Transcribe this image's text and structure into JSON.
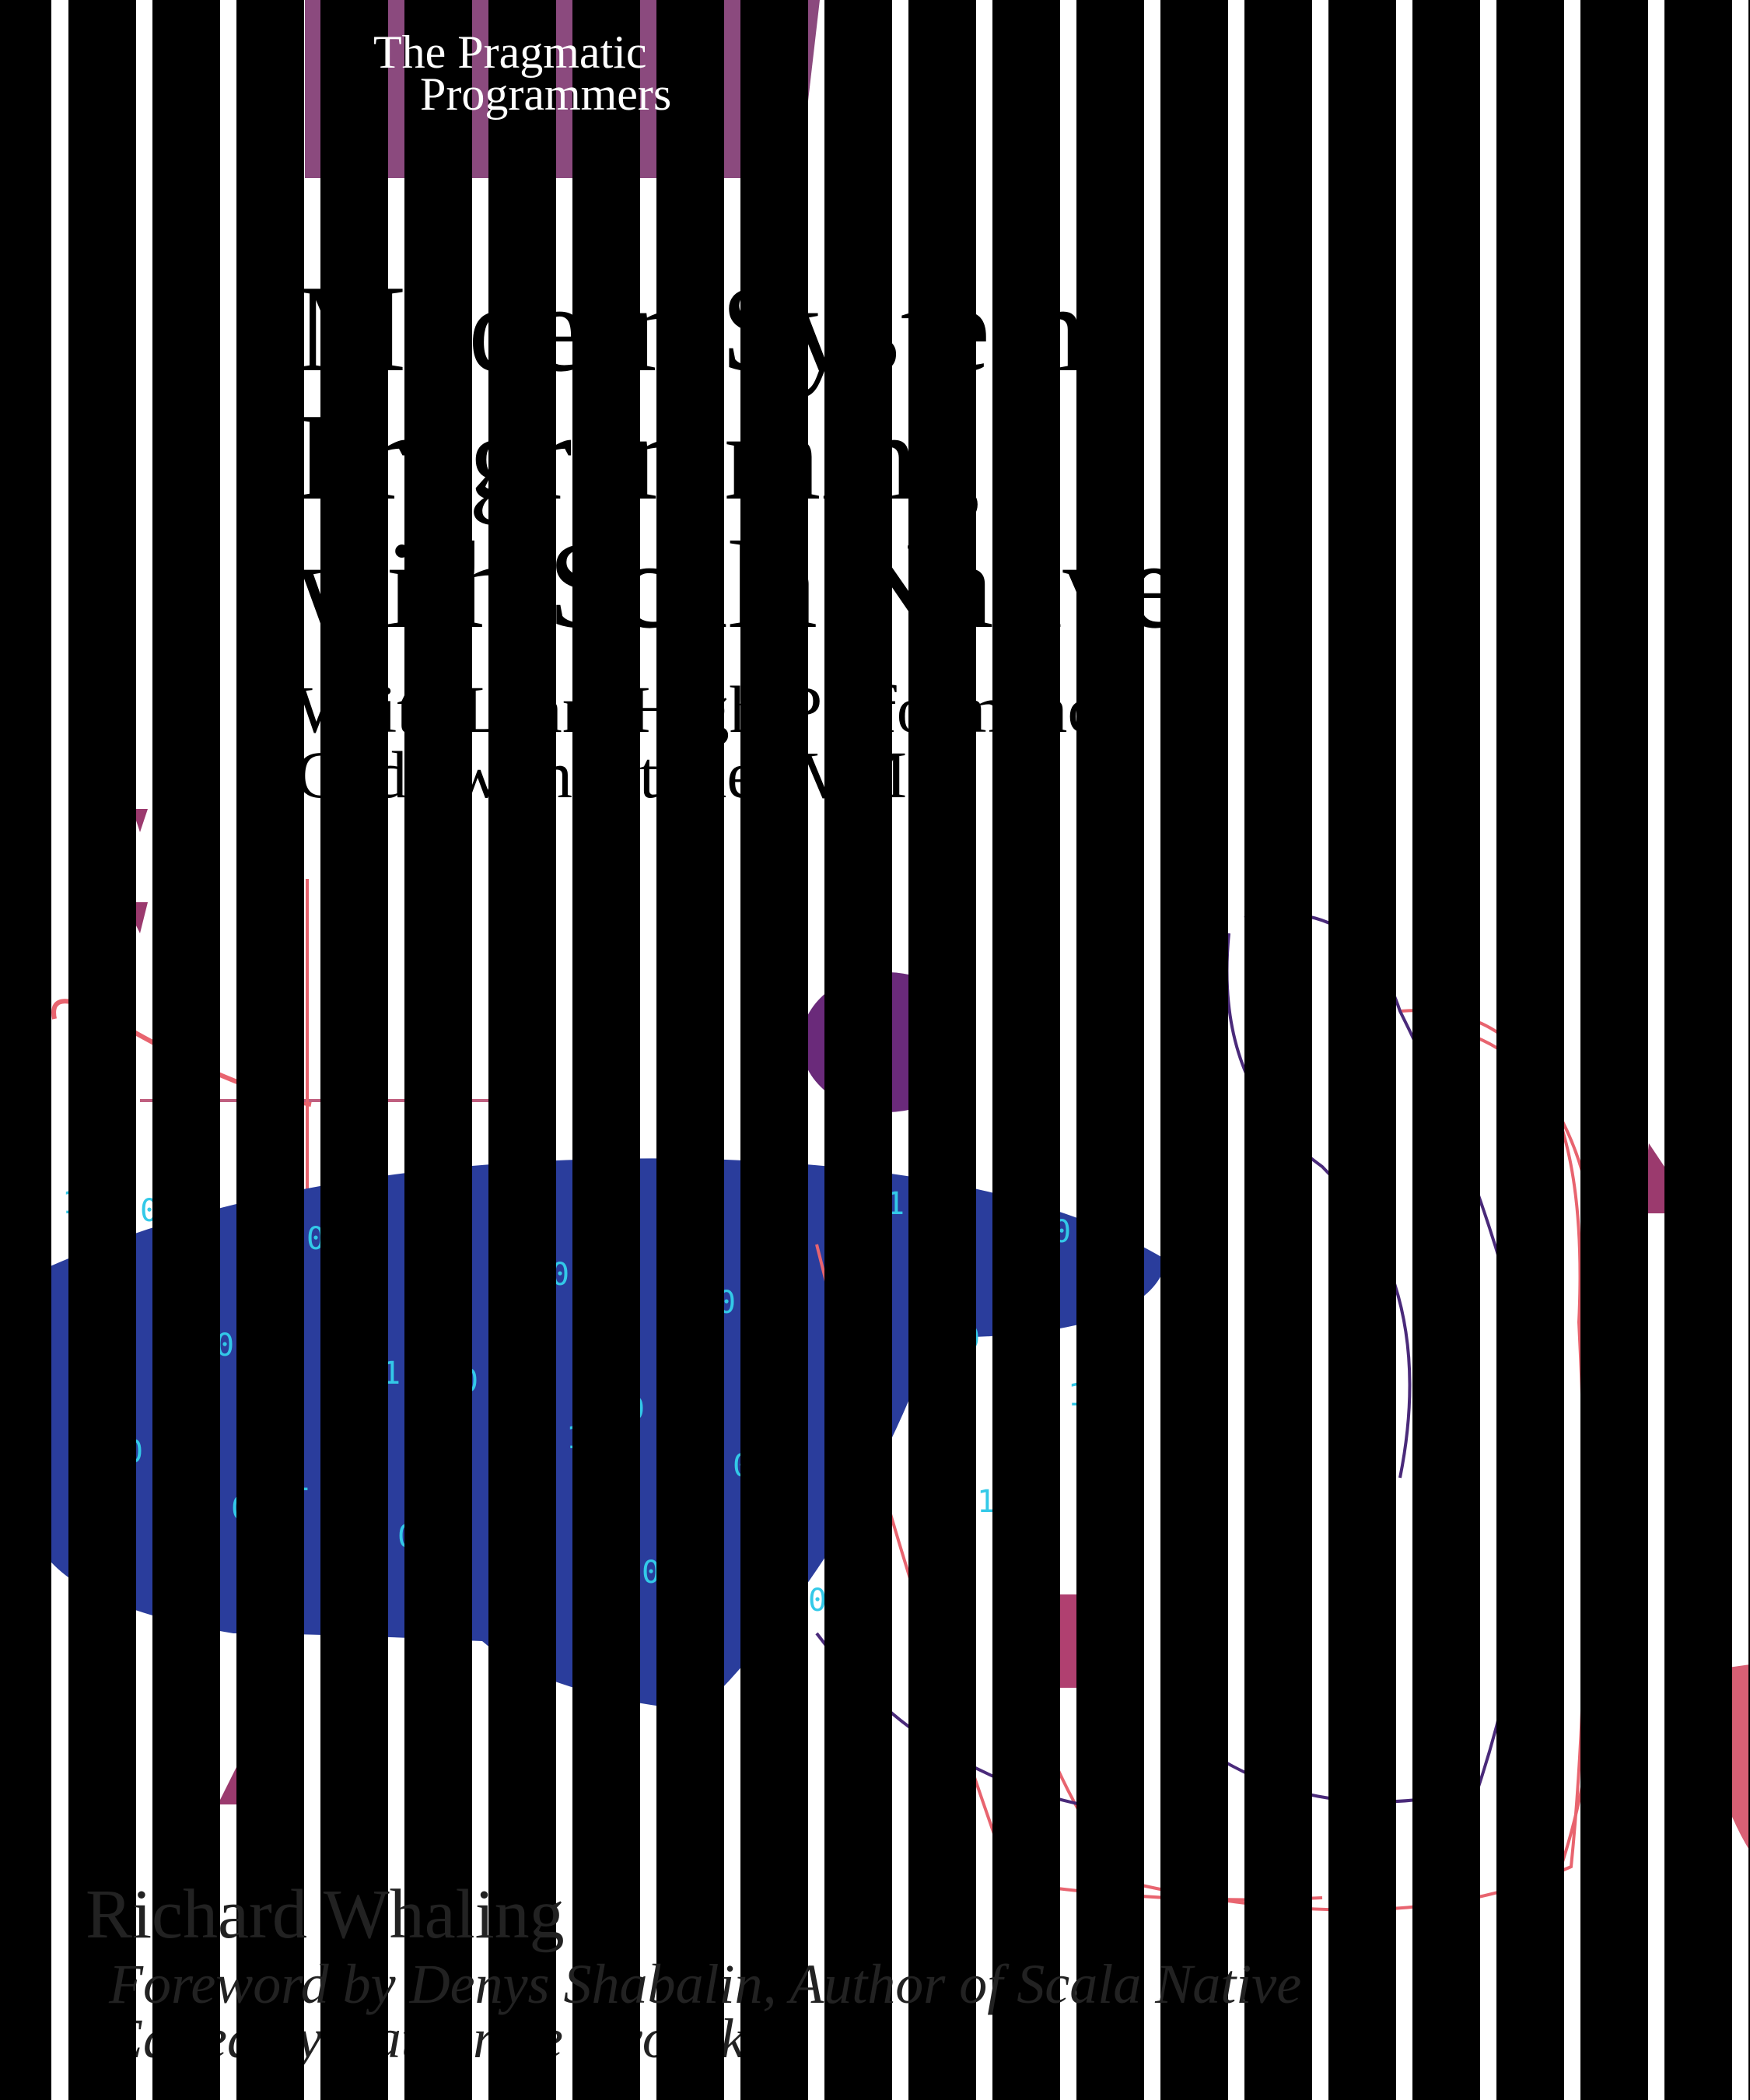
{
  "publisher": {
    "line1": "The Pragmatic",
    "line2": "Programmers"
  },
  "title": {
    "line1": "Modern Systems",
    "line2": "Programming",
    "line3": "with Scala Native"
  },
  "subtitle": {
    "line1": "Write Lean, High-Performance",
    "line2": "Code without the JVM"
  },
  "author": "Richard Whaling",
  "foreword": "Foreword by Denys Shabalin, Author of Scala Native",
  "editor": "Edited by Katharine Dvorak",
  "colors": {
    "banner": "#8b4a7e",
    "blob": "#2a3d9c",
    "digits": "#33c9e8",
    "line_pink": "#e8646f",
    "line_purple": "#4a2a7a"
  }
}
